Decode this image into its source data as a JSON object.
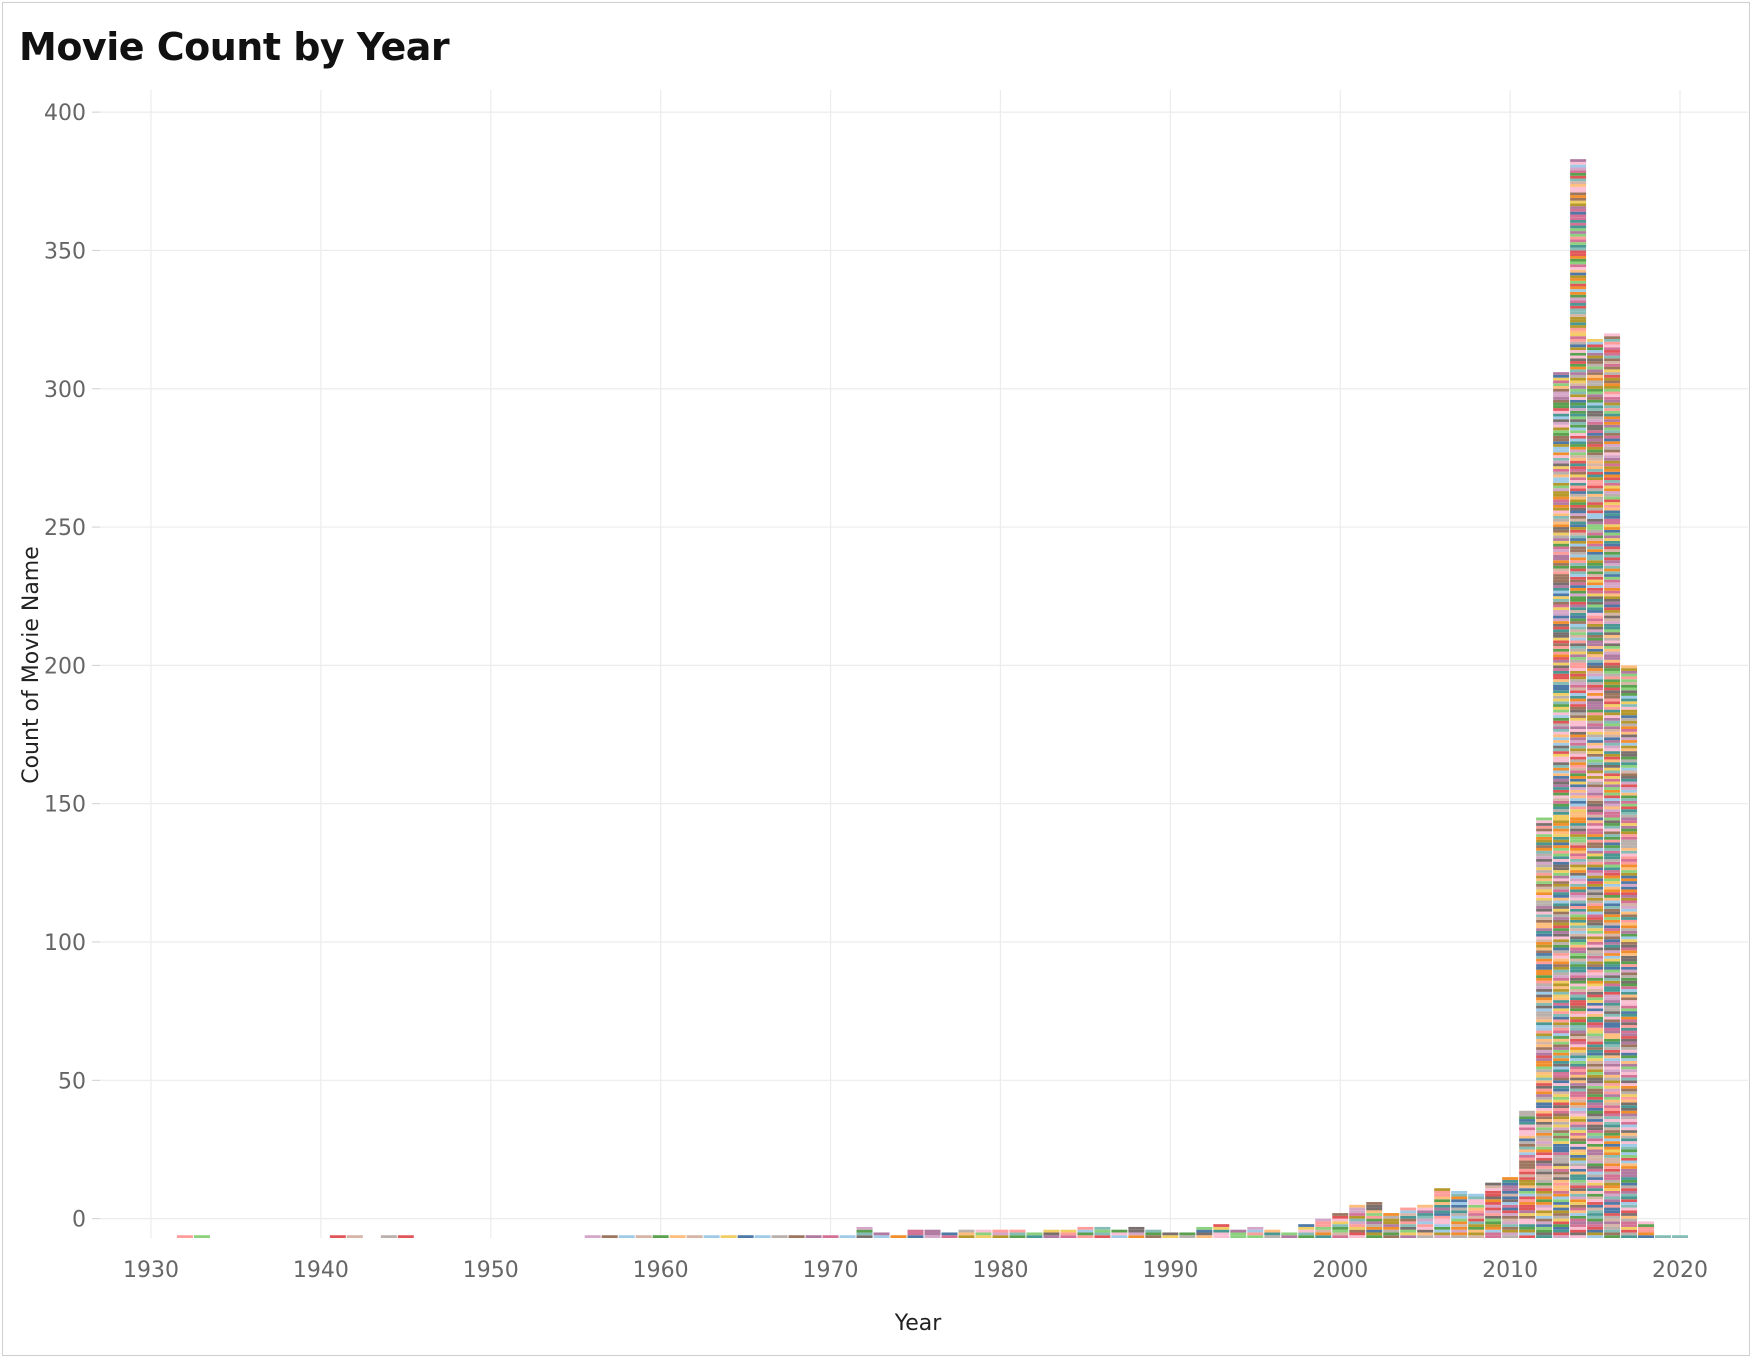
{
  "chart_data": {
    "type": "bar",
    "title": "Movie Count by Year",
    "xlabel": "Year",
    "ylabel": "Count of Movie Name",
    "xlim": [
      1927,
      2024
    ],
    "ylim": [
      -7,
      408
    ],
    "x_ticks": [
      1930,
      1940,
      1950,
      1960,
      1970,
      1980,
      1990,
      2000,
      2010,
      2020
    ],
    "y_ticks": [
      0,
      50,
      100,
      150,
      200,
      250,
      300,
      350,
      400
    ],
    "grid": true,
    "legend": "none",
    "years": [
      1932,
      1933,
      1941,
      1942,
      1944,
      1945,
      1956,
      1957,
      1958,
      1959,
      1960,
      1961,
      1962,
      1963,
      1964,
      1965,
      1966,
      1967,
      1968,
      1969,
      1970,
      1971,
      1972,
      1973,
      1974,
      1975,
      1976,
      1977,
      1978,
      1979,
      1980,
      1981,
      1982,
      1983,
      1984,
      1985,
      1986,
      1987,
      1988,
      1989,
      1990,
      1991,
      1992,
      1993,
      1994,
      1995,
      1996,
      1997,
      1998,
      1999,
      2000,
      2001,
      2002,
      2003,
      2004,
      2005,
      2006,
      2007,
      2008,
      2009,
      2010,
      2011,
      2012,
      2013,
      2014,
      2015,
      2016,
      2017,
      2018,
      2019,
      2020
    ],
    "counts": [
      1,
      1,
      1,
      1,
      1,
      1,
      1,
      1,
      1,
      1,
      1,
      1,
      1,
      1,
      1,
      1,
      1,
      1,
      1,
      1,
      1,
      1,
      4,
      2,
      1,
      3,
      3,
      2,
      3,
      3,
      3,
      3,
      2,
      3,
      3,
      4,
      4,
      3,
      4,
      3,
      2,
      2,
      4,
      5,
      3,
      4,
      3,
      2,
      5,
      7,
      9,
      12,
      13,
      9,
      11,
      12,
      18,
      17,
      16,
      20,
      22,
      46,
      152,
      313,
      390,
      325,
      327,
      207,
      6,
      1,
      1
    ],
    "palette": [
      "#4e79a7",
      "#a0cbe8",
      "#f28e2b",
      "#ffbe7d",
      "#59a14f",
      "#8cd17d",
      "#b6992d",
      "#f1ce63",
      "#499894",
      "#86bcb6",
      "#e15759",
      "#ff9d9a",
      "#79706e",
      "#bab0ac",
      "#d37295",
      "#fabfd2",
      "#b07aa1",
      "#d4a6c8",
      "#9d7660",
      "#d7b5a6"
    ]
  }
}
